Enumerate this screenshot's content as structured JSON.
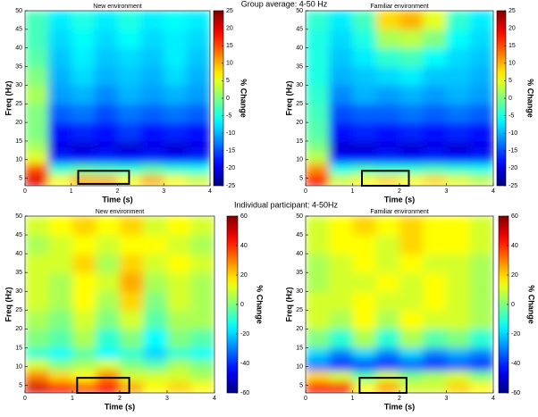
{
  "headings": [
    "Group average: 4-50 Hz",
    "Individual participant: 4-50Hz"
  ],
  "chart_data": [
    {
      "type": "heatmap",
      "title": "New environment",
      "xlabel": "Time (s)",
      "ylabel": "Freq (Hz)",
      "colorbar_label": "% Change",
      "colormap": "jet",
      "x": [
        0,
        0.5,
        1,
        1.5,
        2,
        2.5,
        3,
        3.5,
        4
      ],
      "y": [
        3,
        6,
        9,
        12,
        15,
        20,
        25,
        30,
        35,
        40,
        45,
        50
      ],
      "z": [
        [
          20,
          6,
          10,
          10,
          6,
          10,
          6,
          4
        ],
        [
          15,
          -4,
          -2,
          -3,
          -4,
          -2,
          -4,
          -5
        ],
        [
          5,
          -17,
          -18,
          -17,
          -18,
          -17,
          -18,
          -17
        ],
        [
          2,
          -20,
          -21,
          -20,
          -21,
          -20,
          -21,
          -20
        ],
        [
          0,
          -18,
          -17,
          -18,
          -16,
          -18,
          -17,
          -18
        ],
        [
          0,
          -14,
          -13,
          -15,
          -13,
          -14,
          -13,
          -14
        ],
        [
          2,
          -11,
          -10,
          -12,
          -10,
          -11,
          -10,
          -11
        ],
        [
          0,
          -10,
          -8,
          -10,
          -9,
          -10,
          -8,
          -10
        ],
        [
          -2,
          -9,
          -7,
          -9,
          -8,
          -9,
          -7,
          -9
        ],
        [
          -3,
          -8,
          -6,
          -8,
          -6,
          -8,
          -7,
          -8
        ],
        [
          -3,
          -7,
          -5,
          -7,
          -5,
          -7,
          -6,
          -7
        ]
      ],
      "xlim": [
        0,
        4
      ],
      "ylim": [
        3,
        50
      ],
      "xticks": [
        0,
        1,
        2,
        3,
        4
      ],
      "yticks": [
        5,
        10,
        15,
        20,
        25,
        30,
        35,
        40,
        45,
        50
      ],
      "clim": [
        -25,
        25
      ],
      "cticks": [
        25,
        20,
        15,
        10,
        5,
        0,
        -5,
        -10,
        -15,
        -20,
        -25
      ],
      "highlight": {
        "x": [
          1.15,
          2.25
        ],
        "y": [
          3.5,
          7
        ]
      }
    },
    {
      "type": "heatmap",
      "title": "Familiar environment",
      "xlabel": "Time (s)",
      "ylabel": "Freq (Hz)",
      "colorbar_label": "% Change",
      "colormap": "jet",
      "x": [
        0,
        0.5,
        1,
        1.5,
        2,
        2.5,
        3,
        3.5,
        4
      ],
      "y": [
        3,
        6,
        9,
        12,
        15,
        20,
        25,
        30,
        35,
        40,
        45,
        50
      ],
      "z": [
        [
          18,
          4,
          6,
          8,
          6,
          8,
          5,
          3
        ],
        [
          12,
          -5,
          -3,
          -4,
          -4,
          -3,
          -4,
          -5
        ],
        [
          3,
          -18,
          -18,
          -17,
          -18,
          -17,
          -18,
          -17
        ],
        [
          0,
          -21,
          -21,
          -20,
          -21,
          -20,
          -21,
          -20
        ],
        [
          -2,
          -18,
          -17,
          -18,
          -17,
          -18,
          -17,
          -18
        ],
        [
          -3,
          -15,
          -14,
          -14,
          -13,
          -14,
          -13,
          -14
        ],
        [
          -4,
          -12,
          -10,
          -11,
          -10,
          -11,
          -10,
          -11
        ],
        [
          -5,
          -10,
          -9,
          -8,
          -7,
          -9,
          -9,
          -10
        ],
        [
          -5,
          -9,
          -7,
          -4,
          -3,
          -6,
          -8,
          -9
        ],
        [
          -5,
          -8,
          -5,
          2,
          3,
          0,
          -6,
          -8
        ],
        [
          -4,
          -7,
          -3,
          8,
          10,
          5,
          -4,
          -7
        ]
      ],
      "xlim": [
        0,
        4
      ],
      "ylim": [
        3,
        50
      ],
      "xticks": [
        0,
        1,
        2,
        3,
        4
      ],
      "yticks": [
        5,
        10,
        15,
        20,
        25,
        30,
        35,
        40,
        45,
        50
      ],
      "clim": [
        -25,
        25
      ],
      "cticks": [
        25,
        20,
        15,
        10,
        5,
        0,
        -5,
        -10,
        -15,
        -20,
        -25
      ],
      "highlight": {
        "x": [
          1.2,
          2.2
        ],
        "y": [
          3,
          7
        ]
      }
    },
    {
      "type": "heatmap",
      "title": "New environment",
      "xlabel": "Time (s)",
      "ylabel": "Freq (Hz)",
      "colorbar_label": "% Change",
      "colormap": "jet",
      "x": [
        0,
        0.5,
        1,
        1.5,
        2,
        2.5,
        3,
        3.5,
        4
      ],
      "y": [
        3,
        6,
        9,
        12,
        15,
        20,
        25,
        30,
        35,
        40,
        45,
        50
      ],
      "z": [
        [
          50,
          45,
          35,
          45,
          25,
          15,
          20,
          15
        ],
        [
          30,
          20,
          15,
          30,
          10,
          10,
          10,
          5
        ],
        [
          10,
          0,
          5,
          10,
          0,
          -5,
          5,
          0
        ],
        [
          -10,
          -15,
          -5,
          -15,
          -10,
          -20,
          -10,
          -15
        ],
        [
          0,
          -5,
          5,
          -10,
          0,
          -15,
          0,
          -5
        ],
        [
          5,
          0,
          10,
          0,
          10,
          -5,
          5,
          5
        ],
        [
          10,
          5,
          15,
          5,
          20,
          0,
          10,
          5
        ],
        [
          10,
          5,
          15,
          10,
          25,
          5,
          10,
          5
        ],
        [
          10,
          10,
          20,
          5,
          20,
          10,
          15,
          10
        ],
        [
          5,
          10,
          15,
          10,
          15,
          15,
          10,
          5
        ],
        [
          10,
          15,
          20,
          15,
          20,
          10,
          15,
          10
        ]
      ],
      "xlim": [
        0,
        4
      ],
      "ylim": [
        3,
        50
      ],
      "xticks": [
        0,
        1,
        2,
        3,
        4
      ],
      "yticks": [
        5,
        10,
        15,
        20,
        25,
        30,
        35,
        40,
        45,
        50
      ],
      "clim": [
        -60,
        60
      ],
      "cticks": [
        60,
        40,
        20,
        0,
        -20,
        -40,
        -60
      ],
      "highlight": {
        "x": [
          1.1,
          2.2
        ],
        "y": [
          3,
          7
        ]
      }
    },
    {
      "type": "heatmap",
      "title": "Familiar environment",
      "xlabel": "Time (s)",
      "ylabel": "Freq (Hz)",
      "colorbar_label": "% Change",
      "colormap": "jet",
      "x": [
        0,
        0.5,
        1,
        1.5,
        2,
        2.5,
        3,
        3.5,
        4
      ],
      "y": [
        3,
        6,
        9,
        12,
        15,
        20,
        25,
        30,
        35,
        40,
        45,
        50
      ],
      "z": [
        [
          45,
          45,
          15,
          25,
          10,
          10,
          20,
          15
        ],
        [
          20,
          10,
          -5,
          10,
          0,
          5,
          10,
          0
        ],
        [
          -30,
          -40,
          -40,
          -40,
          -35,
          -40,
          -35,
          -40
        ],
        [
          -20,
          -30,
          -20,
          -30,
          -20,
          -30,
          -25,
          -30
        ],
        [
          0,
          -10,
          5,
          -10,
          5,
          -5,
          0,
          -10
        ],
        [
          10,
          5,
          15,
          5,
          15,
          10,
          10,
          5
        ],
        [
          10,
          10,
          15,
          10,
          10,
          15,
          10,
          5
        ],
        [
          5,
          10,
          10,
          15,
          10,
          15,
          10,
          5
        ],
        [
          5,
          10,
          15,
          10,
          15,
          10,
          10,
          5
        ],
        [
          10,
          15,
          15,
          10,
          20,
          15,
          15,
          10
        ],
        [
          10,
          15,
          20,
          15,
          20,
          15,
          15,
          10
        ]
      ],
      "xlim": [
        0,
        4
      ],
      "ylim": [
        3,
        50
      ],
      "xticks": [
        0,
        1,
        2,
        3,
        4
      ],
      "yticks": [
        5,
        10,
        15,
        20,
        25,
        30,
        35,
        40,
        45,
        50
      ],
      "clim": [
        -60,
        60
      ],
      "cticks": [
        60,
        40,
        20,
        0,
        -20,
        -40,
        -60
      ],
      "highlight": {
        "x": [
          1.15,
          2.15
        ],
        "y": [
          3,
          7
        ]
      }
    }
  ]
}
